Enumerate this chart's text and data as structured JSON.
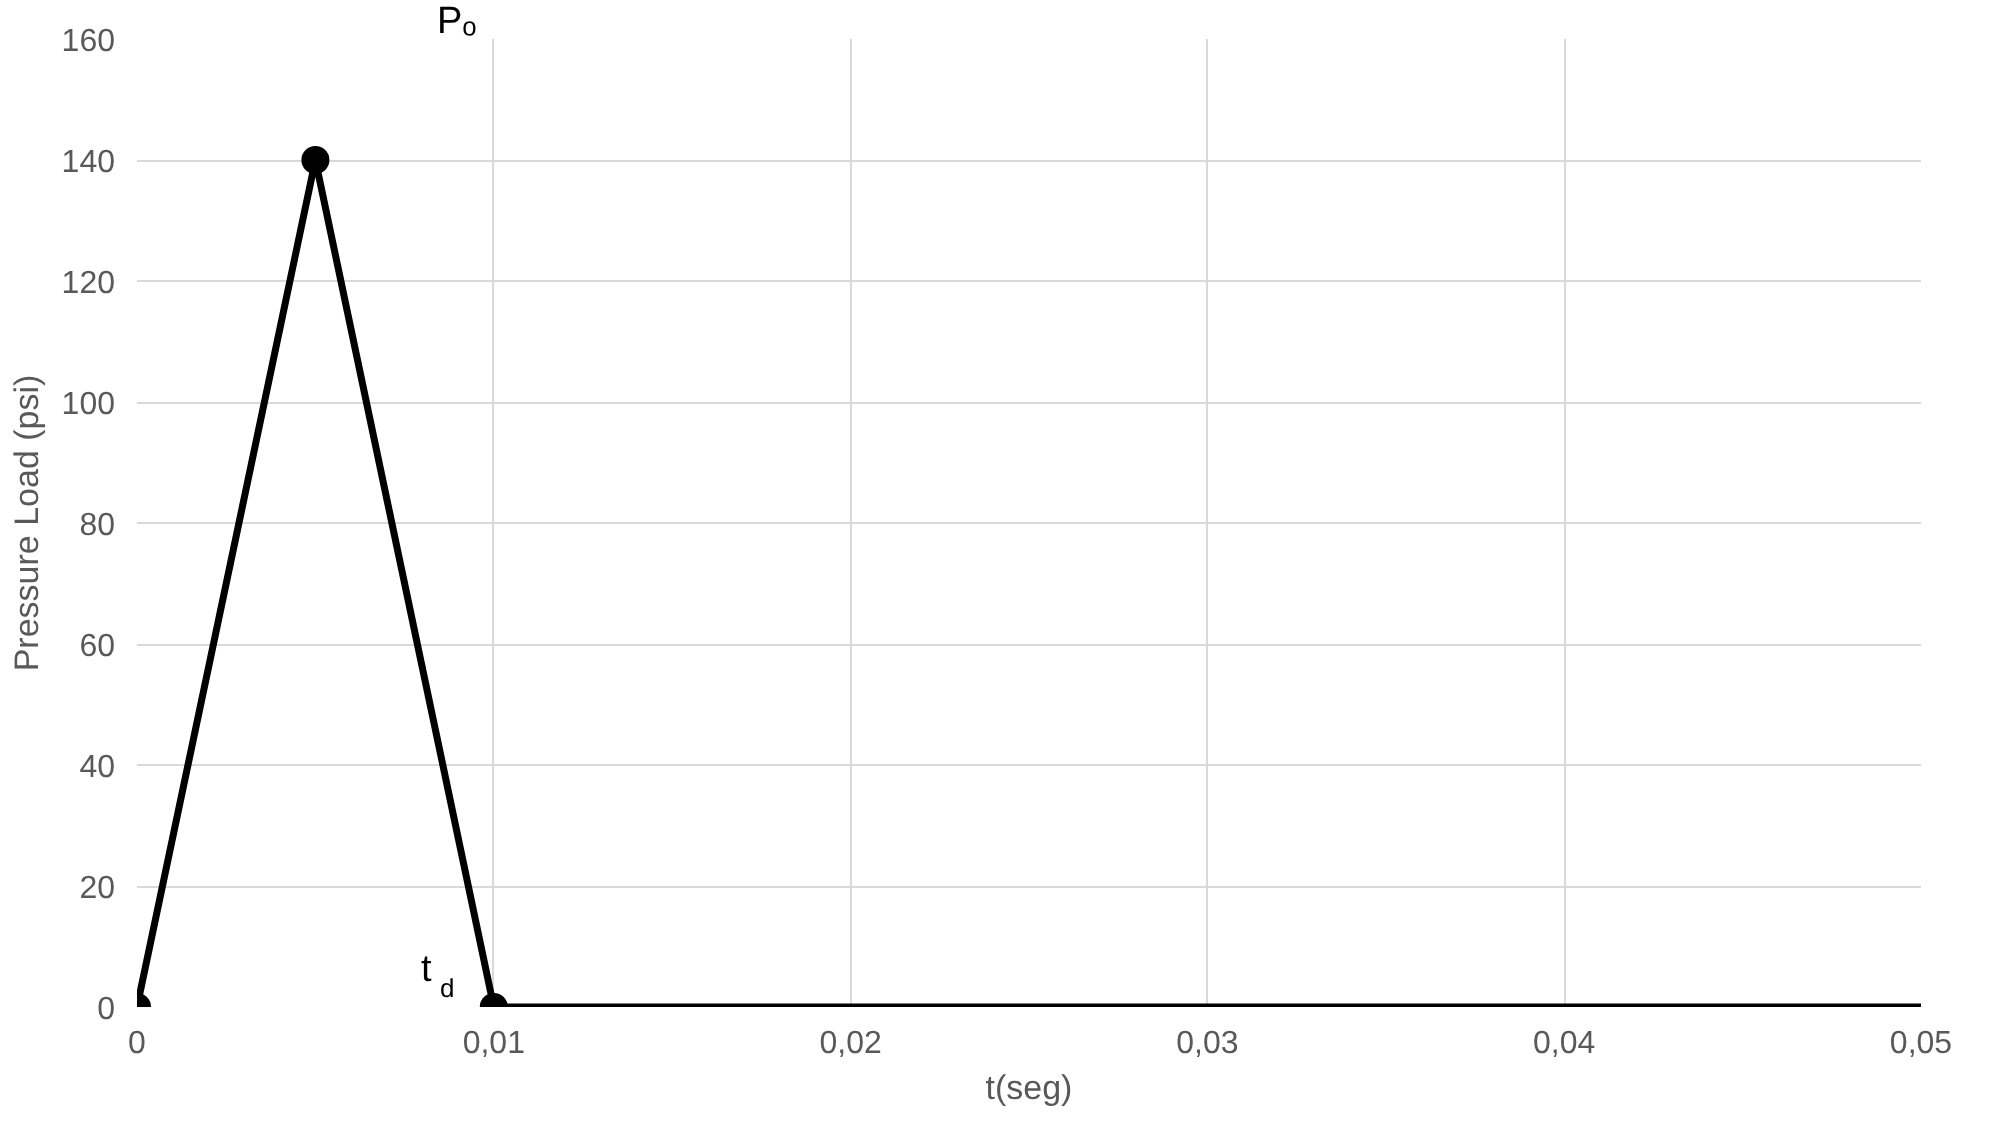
{
  "chart_data": {
    "type": "line",
    "xlabel": "t(seg)",
    "ylabel": "Pressure Load (psi)",
    "xlim": [
      0,
      0.05
    ],
    "ylim": [
      0,
      160
    ],
    "xticks": [
      0,
      {
        "value": 0.01,
        "label": "0,01"
      },
      {
        "value": 0.02,
        "label": "0,02"
      },
      {
        "value": 0.03,
        "label": "0,03"
      },
      {
        "value": 0.04,
        "label": "0,04"
      },
      {
        "value": 0.05,
        "label": "0,05"
      }
    ],
    "yticks": [
      0,
      20,
      40,
      60,
      80,
      100,
      120,
      140,
      160
    ],
    "grid": true,
    "line_style": "solid",
    "series": [
      {
        "x": [
          0,
          0.005,
          0.01
        ],
        "values": [
          0,
          140,
          0
        ],
        "color": "#000000",
        "marker": "circle"
      },
      {
        "x": [
          0.01,
          0.05
        ],
        "values": [
          0,
          0
        ],
        "color": "#000000",
        "marker": "none"
      }
    ],
    "annotations": [
      "Pₒ",
      "t$_{d}$"
    ]
  }
}
